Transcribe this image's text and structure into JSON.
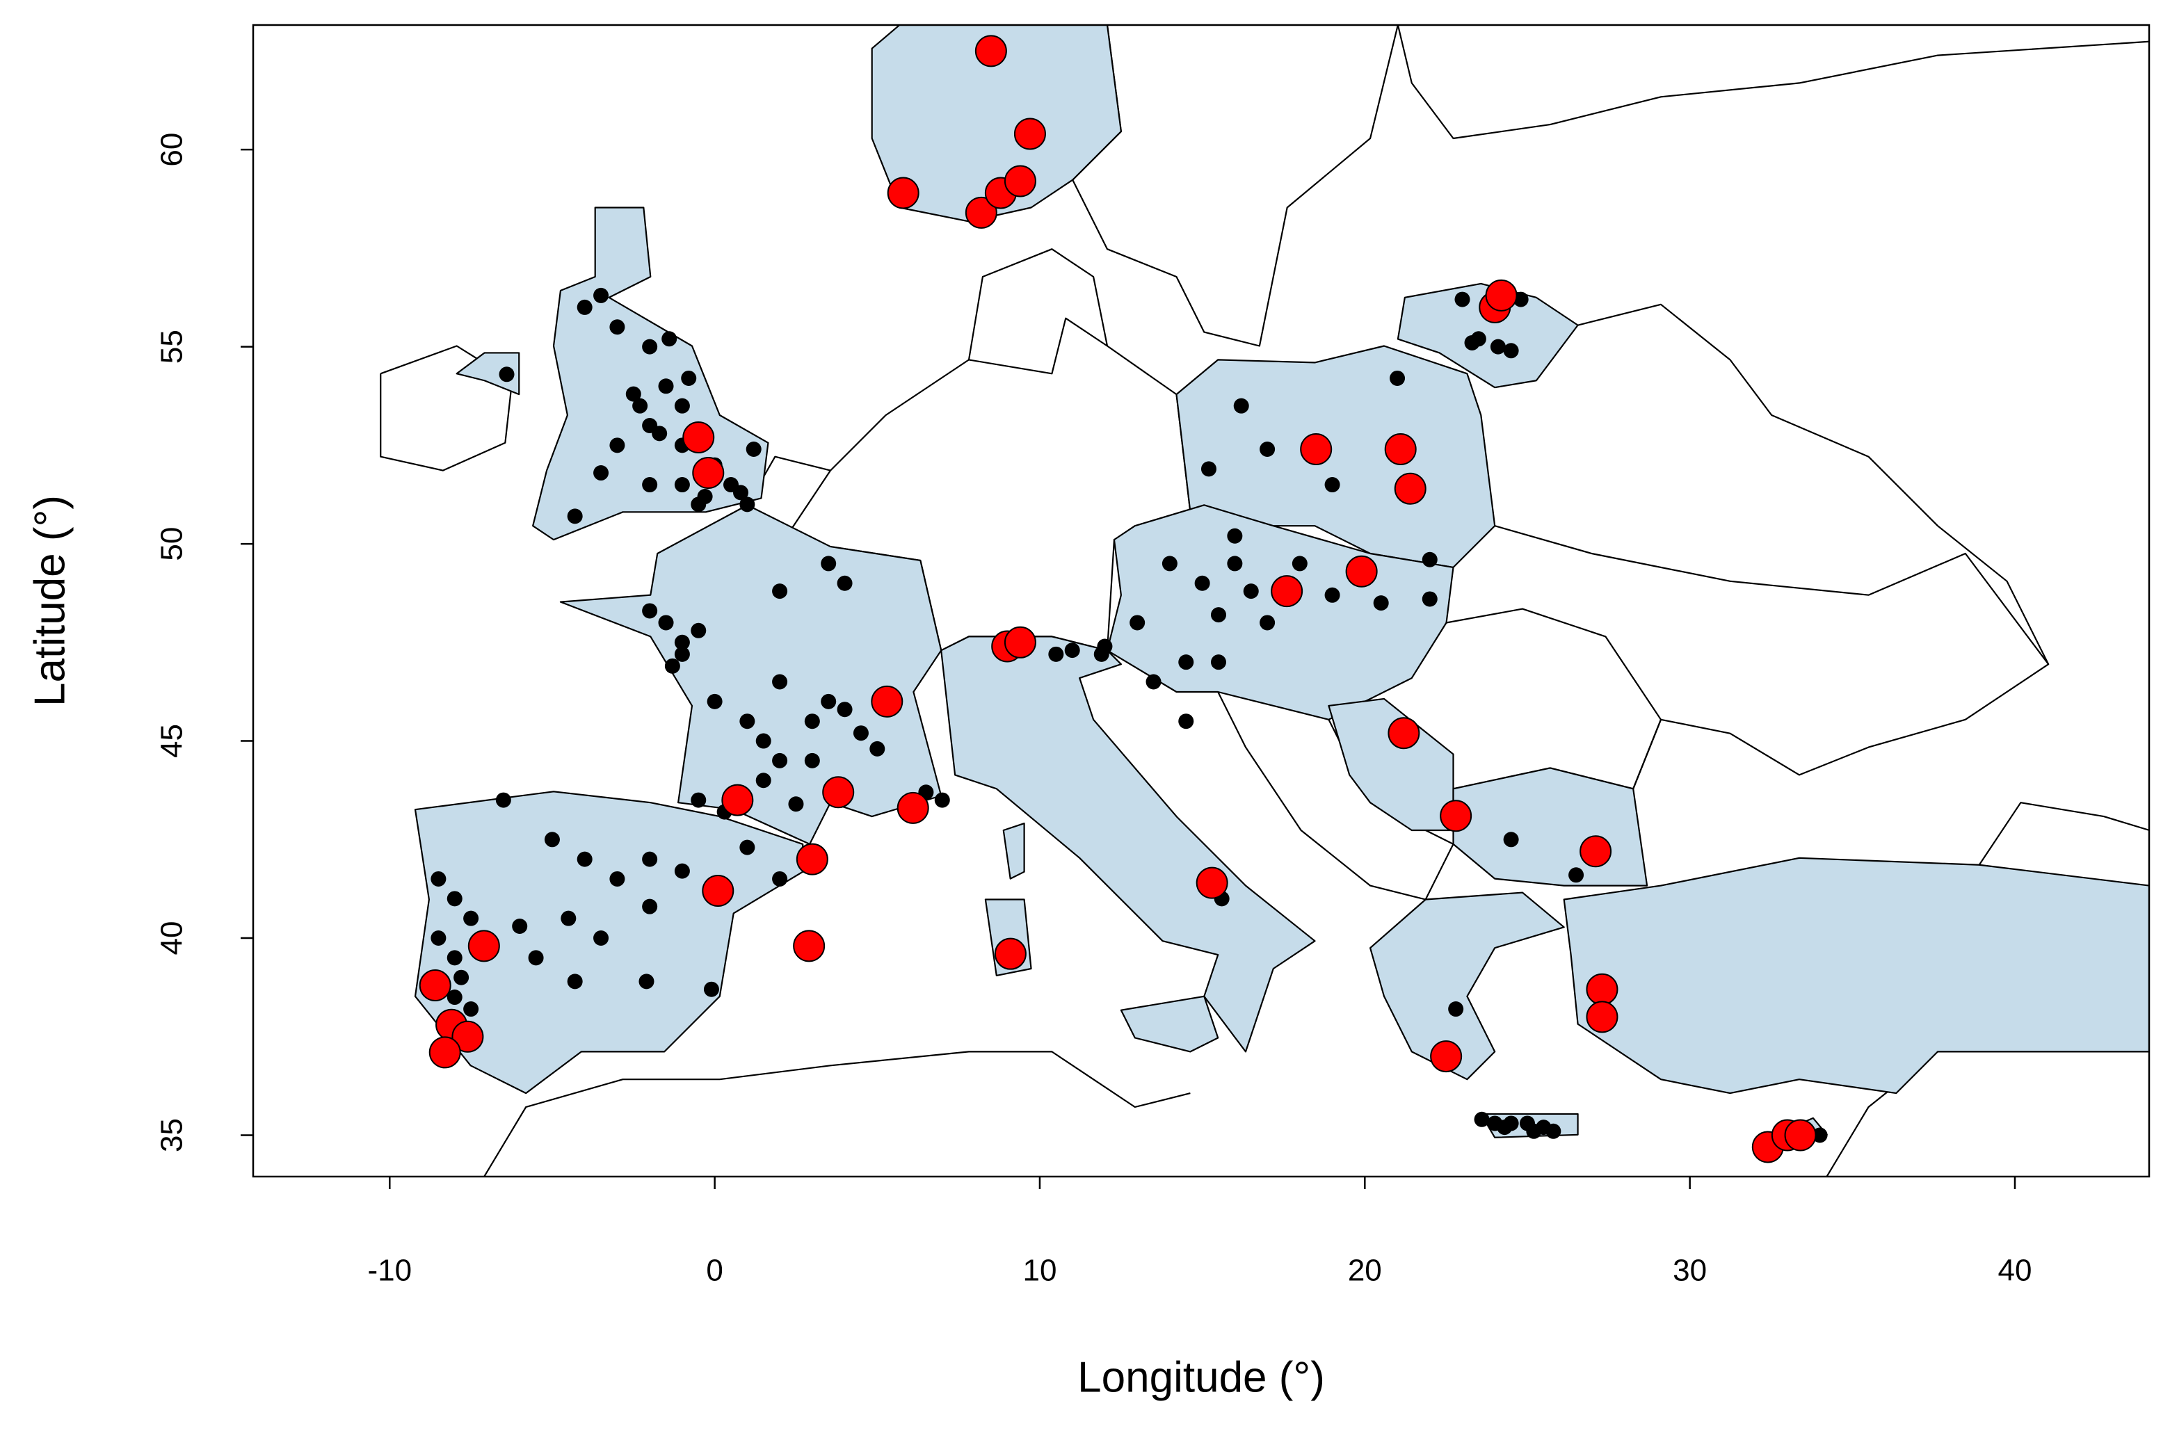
{
  "chart_data": {
    "type": "scatter",
    "xlabel": "Longitude (°)",
    "ylabel": "Latitude (°)",
    "xlim": [
      -14.2,
      44.13
    ],
    "ylim": [
      33.95,
      63.16
    ],
    "xticks": [
      -10,
      0,
      10,
      20,
      30,
      40
    ],
    "yticks": [
      35,
      40,
      45,
      50,
      55,
      60
    ],
    "series": [
      {
        "color": "#000000",
        "x": [
          -3,
          -2,
          -1.5,
          -2.5,
          -1,
          -2,
          -3,
          -1,
          0,
          0.5,
          -1,
          -0.5,
          0.8,
          -2,
          -3.5,
          -4.3,
          -4,
          -3.5,
          -1.4,
          -0.8,
          1.2,
          -1.7,
          -2.3,
          -0.3,
          1,
          -6.4,
          -1.5,
          -1,
          -1.3,
          -0.5,
          -2,
          -1,
          3.5,
          4,
          2,
          0,
          1,
          1.5,
          2,
          3,
          3.5,
          4,
          4.5,
          3,
          1.5,
          2.5,
          0.3,
          -0.5,
          5,
          6.5,
          7,
          2,
          -8.5,
          -8,
          -7.5,
          -8.5,
          -8,
          -7.8,
          -8,
          -7.5,
          -6.5,
          -5,
          -4,
          -3,
          -2,
          -1,
          -4.5,
          -3.5,
          -2,
          -5.5,
          -4.3,
          -2.1,
          -0.1,
          2,
          1,
          -6,
          13,
          14,
          15,
          16,
          16.5,
          17,
          15.5,
          18,
          19,
          20.5,
          22,
          14.5,
          15.5,
          13.5,
          14.5,
          12,
          10.5,
          11,
          16,
          16.2,
          15.2,
          17,
          19,
          21,
          22,
          23,
          23.5,
          24.1,
          24.5,
          23.3,
          24.8,
          24.5,
          26.5,
          22.8,
          15.6,
          11.9,
          23.6,
          24,
          24.5,
          25,
          25.5,
          24.3,
          25.2,
          25.8,
          34
        ],
        "values": [
          55.5,
          55,
          54,
          53.8,
          53.5,
          53,
          52.5,
          52.5,
          52,
          51.5,
          51.5,
          51,
          51.3,
          51.5,
          51.8,
          50.7,
          56,
          56.3,
          55.2,
          54.2,
          52.4,
          52.8,
          53.5,
          51.2,
          51,
          54.3,
          48,
          47.2,
          46.9,
          47.8,
          48.3,
          47.5,
          49.5,
          49,
          48.8,
          46,
          45.5,
          45,
          44.5,
          45.5,
          46,
          45.8,
          45.2,
          44.5,
          44,
          43.4,
          43.2,
          43.5,
          44.8,
          43.7,
          43.5,
          46.5,
          41.5,
          41,
          40.5,
          40,
          39.5,
          39,
          38.5,
          38.2,
          43.5,
          42.5,
          42,
          41.5,
          42,
          41.7,
          40.5,
          40,
          40.8,
          39.5,
          38.9,
          38.9,
          38.7,
          41.5,
          42.3,
          40.3,
          48,
          49.5,
          49,
          49.5,
          48.8,
          48,
          48.2,
          49.5,
          48.7,
          48.5,
          48.6,
          47,
          47,
          46.5,
          45.5,
          47.4,
          47.2,
          47.3,
          50.2,
          53.5,
          51.9,
          52.4,
          51.5,
          54.2,
          49.6,
          56.2,
          55.2,
          55,
          54.9,
          55.1,
          56.2,
          42.5,
          41.6,
          38.2,
          41,
          47.2,
          35.4,
          35.3,
          35.3,
          35.3,
          35.2,
          35.2,
          35.1,
          35.1,
          35
        ]
      },
      {
        "color": "#ff0000",
        "x": [
          8.5,
          9.7,
          5.8,
          8.2,
          8.8,
          9.4,
          -0.5,
          -0.2,
          24.0,
          24.2,
          18.5,
          21.1,
          21.4,
          19.9,
          17.6,
          9.0,
          9.4,
          5.3,
          21.2,
          0.7,
          3.8,
          6.1,
          22.8,
          3.0,
          27.1,
          0.1,
          15.3,
          -7.1,
          2.9,
          9.1,
          -8.6,
          27.3,
          27.3,
          -8.1,
          -7.6,
          -8.3,
          22.5,
          32.4,
          33.0,
          33.4
        ],
        "values": [
          62.5,
          60.4,
          58.9,
          58.4,
          58.9,
          59.2,
          52.7,
          51.8,
          56.0,
          56.3,
          52.4,
          52.4,
          51.4,
          49.3,
          48.8,
          47.4,
          47.5,
          46.0,
          45.2,
          43.5,
          43.7,
          43.3,
          43.1,
          42.0,
          42.2,
          41.2,
          41.4,
          39.8,
          39.8,
          39.6,
          38.8,
          38.7,
          38.0,
          37.8,
          37.5,
          37.1,
          37.0,
          34.7,
          35.0,
          35.0
        ]
      }
    ]
  }
}
